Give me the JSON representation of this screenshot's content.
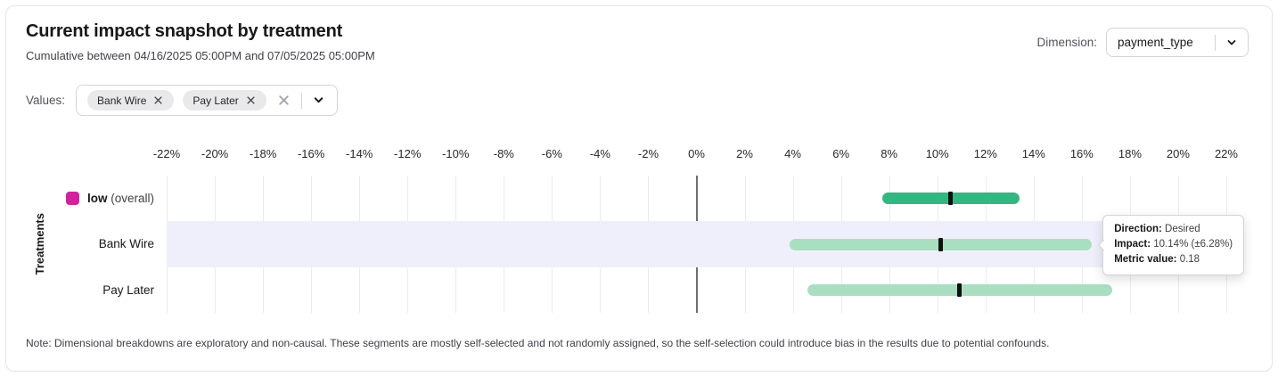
{
  "header": {
    "title": "Current impact snapshot by treatment",
    "subtitle": "Cumulative between 04/16/2025 05:00PM and 07/05/2025 05:00PM"
  },
  "dimension": {
    "label": "Dimension:",
    "selected": "payment_type"
  },
  "values": {
    "label": "Values:",
    "chips": [
      "Bank Wire",
      "Pay Later"
    ]
  },
  "chart_data": {
    "type": "interval-bar",
    "ylabel": "Treatments",
    "axis": {
      "unit": "%",
      "min": -23,
      "max": 23,
      "tick_start": -22,
      "tick_end": 22,
      "tick_step": 2
    },
    "grid": true,
    "highlight_color": "#efeffb",
    "rows": [
      {
        "label": "low",
        "suffix": " (overall)",
        "bold": true,
        "legend_color": "#d2219c",
        "bar_color": "#34b683",
        "low": 7.7,
        "high": 13.4,
        "point": 10.56,
        "highlighted": false
      },
      {
        "label": "Bank Wire",
        "suffix": "",
        "bold": false,
        "legend_color": null,
        "bar_color": "#a9dfc0",
        "low": 3.86,
        "high": 16.42,
        "point": 10.14,
        "highlighted": true
      },
      {
        "label": "Pay Later",
        "suffix": "",
        "bold": false,
        "legend_color": null,
        "bar_color": "#a9dfc0",
        "low": 4.6,
        "high": 17.26,
        "point": 10.93,
        "highlighted": false
      }
    ],
    "tooltip": {
      "row": 1,
      "lines": [
        {
          "label": "Direction:",
          "value": "Desired"
        },
        {
          "label": "Impact:",
          "value": "10.14% (±6.28%)"
        },
        {
          "label": "Metric value:",
          "value": "0.18"
        }
      ]
    }
  },
  "note": "Note: Dimensional breakdowns are exploratory and non-causal. These segments are mostly self-selected and not randomly assigned, so the self-selection could introduce bias in the results due to potential confounds."
}
